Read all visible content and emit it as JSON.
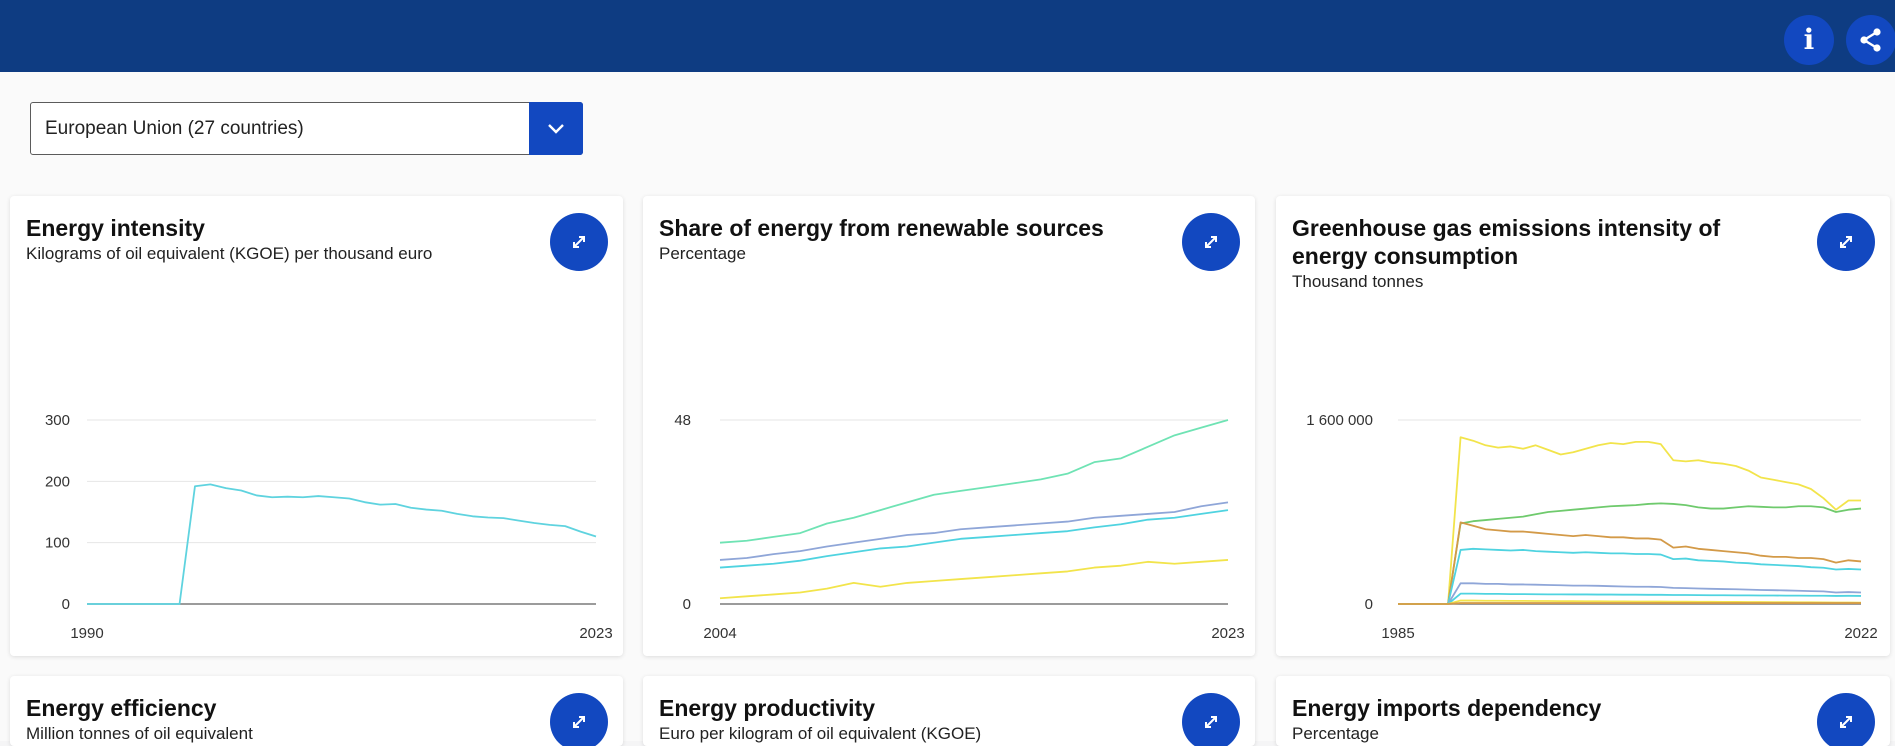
{
  "header": {
    "info_icon": "info-icon",
    "share_icon": "share-icon",
    "accent_color": "#0e3c82",
    "button_color": "#1248c0"
  },
  "filter": {
    "country_value": "European Union (27 countries)",
    "caret_icon": "chevron-down-icon"
  },
  "cards": [
    {
      "title": "Energy intensity",
      "subtitle": "Kilograms of oil equivalent (KGOE) per thousand euro",
      "expand_icon": "expand-icon"
    },
    {
      "title": "Share of energy from renewable sources",
      "subtitle": "Percentage",
      "expand_icon": "expand-icon"
    },
    {
      "title_line1": "Greenhouse gas emissions intensity of",
      "title_line2": "energy consumption",
      "subtitle": "Thousand tonnes",
      "expand_icon": "expand-icon"
    },
    {
      "title": "Energy efficiency",
      "subtitle": "Million tonnes of oil equivalent",
      "expand_icon": "expand-icon"
    },
    {
      "title": "Energy productivity",
      "subtitle": "Euro per kilogram of oil equivalent (KGOE)",
      "expand_icon": "expand-icon"
    },
    {
      "title": "Energy imports dependency",
      "subtitle": "Percentage",
      "expand_icon": "expand-icon"
    }
  ],
  "chart_data": [
    {
      "type": "line",
      "x": [
        1990,
        1991,
        1992,
        1993,
        1994,
        1995,
        1996,
        1997,
        1998,
        1999,
        2000,
        2001,
        2002,
        2003,
        2004,
        2005,
        2006,
        2007,
        2008,
        2009,
        2010,
        2011,
        2012,
        2013,
        2014,
        2015,
        2016,
        2017,
        2018,
        2019,
        2020,
        2021,
        2022,
        2023
      ],
      "series": [
        {
          "color": "#5fd3df",
          "values": [
            0,
            0,
            0,
            0,
            0,
            0,
            0,
            192,
            195,
            189,
            185,
            177,
            174,
            175,
            174,
            176,
            174,
            172,
            166,
            162,
            163,
            157,
            154,
            152,
            147,
            143,
            141,
            140,
            136,
            132,
            129,
            127,
            118,
            110
          ]
        }
      ],
      "ylim": [
        0,
        300
      ],
      "yticks": [
        "300",
        "200",
        "100",
        "0"
      ],
      "xtick_labels": [
        "1990",
        "2023"
      ],
      "grid": true
    },
    {
      "type": "line",
      "x": [
        2004,
        2005,
        2006,
        2007,
        2008,
        2009,
        2010,
        2011,
        2012,
        2013,
        2014,
        2015,
        2016,
        2017,
        2018,
        2019,
        2020,
        2021,
        2022,
        2023
      ],
      "series": [
        {
          "color": "#6fe3b4",
          "values": [
            16,
            16.5,
            17.5,
            18.5,
            21,
            22.5,
            24.5,
            26.5,
            28.5,
            29.5,
            30.5,
            31.5,
            32.5,
            34,
            37,
            38,
            41,
            44,
            46,
            48
          ]
        },
        {
          "color": "#8fa6d8",
          "values": [
            11.5,
            12,
            13,
            13.8,
            15,
            16,
            17,
            18,
            18.5,
            19.5,
            20,
            20.5,
            21,
            21.5,
            22.5,
            23,
            23.5,
            24,
            25.5,
            26.5
          ]
        },
        {
          "color": "#4fd3e0",
          "values": [
            9.5,
            10,
            10.5,
            11.3,
            12.5,
            13.5,
            14.5,
            15,
            16,
            17,
            17.5,
            18,
            18.5,
            19,
            20,
            20.8,
            22,
            22.5,
            23.5,
            24.5
          ]
        },
        {
          "color": "#f2e44b",
          "values": [
            1.5,
            2,
            2.5,
            3,
            4,
            5.5,
            4.5,
            5.5,
            6,
            6.5,
            7,
            7.5,
            8,
            8.5,
            9.5,
            10,
            11,
            10.5,
            11,
            11.5
          ]
        }
      ],
      "ylim": [
        0,
        48
      ],
      "yticks": [
        "48",
        "0"
      ],
      "xtick_labels": [
        "2004",
        "2023"
      ],
      "grid": true
    },
    {
      "type": "line",
      "x": [
        1985,
        1986,
        1987,
        1988,
        1989,
        1990,
        1991,
        1992,
        1993,
        1994,
        1995,
        1996,
        1997,
        1998,
        1999,
        2000,
        2001,
        2002,
        2003,
        2004,
        2005,
        2006,
        2007,
        2008,
        2009,
        2010,
        2011,
        2012,
        2013,
        2014,
        2015,
        2016,
        2017,
        2018,
        2019,
        2020,
        2021,
        2022
      ],
      "series": [
        {
          "color": "#f2e44b",
          "values": [
            0,
            0,
            0,
            0,
            0,
            1450000,
            1420000,
            1380000,
            1360000,
            1370000,
            1350000,
            1380000,
            1340000,
            1300000,
            1320000,
            1350000,
            1380000,
            1400000,
            1390000,
            1410000,
            1410000,
            1390000,
            1250000,
            1240000,
            1250000,
            1230000,
            1220000,
            1200000,
            1160000,
            1100000,
            1080000,
            1060000,
            1040000,
            1000000,
            920000,
            820000,
            900000,
            900000
          ]
        },
        {
          "color": "#6fca6d",
          "values": [
            0,
            0,
            0,
            0,
            0,
            700000,
            720000,
            730000,
            740000,
            750000,
            760000,
            780000,
            800000,
            810000,
            820000,
            830000,
            840000,
            850000,
            855000,
            860000,
            870000,
            875000,
            870000,
            860000,
            840000,
            830000,
            830000,
            840000,
            850000,
            845000,
            840000,
            840000,
            850000,
            850000,
            840000,
            800000,
            820000,
            830000
          ]
        },
        {
          "color": "#d39a48",
          "values": [
            0,
            0,
            0,
            0,
            0,
            710000,
            680000,
            650000,
            640000,
            630000,
            630000,
            620000,
            610000,
            600000,
            590000,
            600000,
            590000,
            580000,
            580000,
            570000,
            570000,
            560000,
            490000,
            500000,
            480000,
            470000,
            460000,
            450000,
            440000,
            420000,
            410000,
            410000,
            400000,
            400000,
            390000,
            360000,
            380000,
            370000
          ]
        },
        {
          "color": "#4fd3e0",
          "values": [
            0,
            0,
            0,
            0,
            0,
            470000,
            480000,
            475000,
            470000,
            465000,
            470000,
            460000,
            455000,
            450000,
            445000,
            450000,
            445000,
            440000,
            440000,
            435000,
            435000,
            430000,
            390000,
            395000,
            380000,
            375000,
            370000,
            360000,
            355000,
            345000,
            340000,
            335000,
            330000,
            320000,
            315000,
            300000,
            305000,
            300000
          ]
        },
        {
          "color": "#8fa6d8",
          "values": [
            0,
            0,
            0,
            0,
            0,
            180000,
            180000,
            175000,
            175000,
            170000,
            170000,
            168000,
            165000,
            163000,
            160000,
            160000,
            158000,
            155000,
            152000,
            150000,
            150000,
            148000,
            140000,
            138000,
            135000,
            132000,
            130000,
            128000,
            125000,
            122000,
            120000,
            118000,
            115000,
            112000,
            110000,
            100000,
            104000,
            100000
          ]
        },
        {
          "color": "#4fd3e0",
          "values": [
            0,
            0,
            0,
            0,
            0,
            90000,
            90000,
            88000,
            88000,
            86000,
            86000,
            85000,
            84000,
            84000,
            83000,
            83000,
            82000,
            82000,
            81000,
            81000,
            80000,
            80000,
            78000,
            78000,
            77000,
            76000,
            76000,
            75000,
            75000,
            74000,
            74000,
            73000,
            73000,
            72000,
            72000,
            70000,
            71000,
            70000
          ]
        },
        {
          "color": "#f2e44b",
          "values": [
            0,
            0,
            0,
            0,
            0,
            30000,
            30000,
            28000,
            28000,
            27000,
            27000,
            26000,
            26000,
            25000,
            25000,
            24000,
            24000,
            23000,
            23000,
            22000,
            22000,
            21000,
            20000,
            20000,
            19000,
            19000,
            18000,
            18000,
            17000,
            17000,
            16000,
            16000,
            15000,
            15000,
            14000,
            13000,
            13000,
            12000
          ]
        },
        {
          "color": "#d39a48",
          "values": [
            0,
            0,
            0,
            0,
            0,
            8000,
            8000,
            8000,
            8000,
            8000,
            8000,
            8000,
            8000,
            8000,
            8000,
            8000,
            8000,
            8000,
            8000,
            8000,
            8000,
            8000,
            8000,
            8000,
            8000,
            8000,
            8000,
            8000,
            8000,
            8000,
            8000,
            8000,
            8000,
            8000,
            8000,
            8000,
            8000,
            8000
          ]
        }
      ],
      "ylim": [
        0,
        1600000
      ],
      "yticks": [
        "1 600 000",
        "0"
      ],
      "xtick_labels": [
        "1985",
        "2022"
      ],
      "grid": true
    }
  ]
}
